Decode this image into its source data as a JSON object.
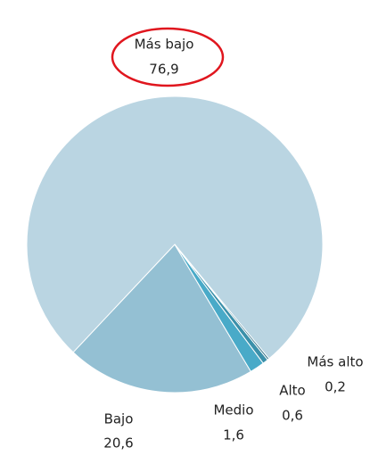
{
  "chart_data": {
    "type": "pie",
    "categories": [
      "Más bajo",
      "Bajo",
      "Medio",
      "Alto",
      "Más alto"
    ],
    "values": [
      76.9,
      20.6,
      1.6,
      0.6,
      0.2
    ],
    "value_labels": [
      "76,9",
      "20,6",
      "1,6",
      "0,6",
      "0,2"
    ],
    "colors": [
      "#bad5e2",
      "#94c0d3",
      "#49aac8",
      "#3b90aa",
      "#2e6f86"
    ]
  }
}
